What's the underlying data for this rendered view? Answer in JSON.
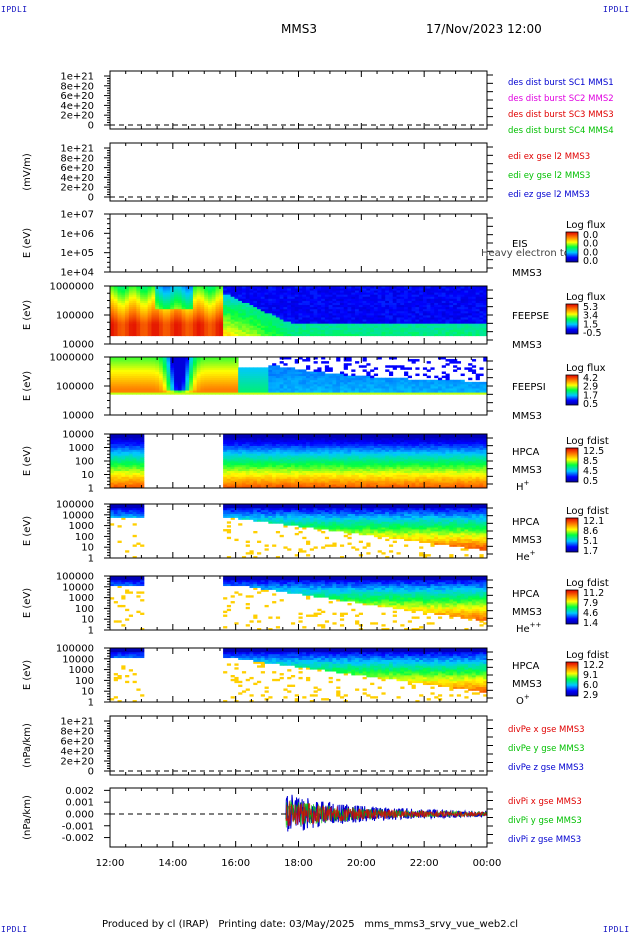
{
  "header": {
    "title": "MMS3",
    "date": "17/Nov/2023 12:00",
    "corner_label": "IPDLI"
  },
  "footer": {
    "producer": "Produced by cl (IRAP)",
    "printing_date": "Printing date: 03/May/2025",
    "source": "mms_mms3_srvy_vue_web2.cl"
  },
  "colors": {
    "red": "#e00000",
    "green": "#00c000",
    "blue": "#0000d0",
    "magenta": "#e000e0",
    "frame": "#000000"
  },
  "chart_data": {
    "type": "multi-panel",
    "x_ticks": [
      "12:00",
      "14:00",
      "16:00",
      "18:00",
      "20:00",
      "22:00",
      "00:00"
    ],
    "x_range": [
      12,
      24
    ],
    "gaps": [
      [
        13.05,
        15.65
      ]
    ],
    "panels": [
      {
        "id": "dist",
        "kind": "line",
        "ylabel": "",
        "yticks": [
          "1e+21",
          "8e+20",
          "6e+20",
          "4e+20",
          "2e+20",
          "0"
        ],
        "ylim": [
          0,
          1.1e+21
        ],
        "zero_line": true,
        "legend": [
          {
            "text": "des dist burst SC1 MMS1",
            "color": "#0000d0"
          },
          {
            "text": "des dist burst SC2 MMS2",
            "color": "#e000e0"
          },
          {
            "text": "des dist burst SC3 MMS3",
            "color": "#e00000"
          },
          {
            "text": "des dist burst SC4 MMS4",
            "color": "#00c000"
          }
        ]
      },
      {
        "id": "edi",
        "kind": "line",
        "ylabel": "(mV/m)",
        "yticks": [
          "1e+21",
          "8e+20",
          "6e+20",
          "4e+20",
          "2e+20",
          "0"
        ],
        "ylim": [
          0,
          1.1e+21
        ],
        "zero_line": true,
        "legend": [
          {
            "text": "edi ex gse l2 MMS3",
            "color": "#e00000"
          },
          {
            "text": "edi ey gse l2 MMS3",
            "color": "#00c000"
          },
          {
            "text": "edi ez gse l2 MMS3",
            "color": "#0000d0"
          }
        ]
      },
      {
        "id": "eis",
        "kind": "spectrogram-empty",
        "ylabel": "E (eV)",
        "yticks": [
          "1e+07",
          "1e+06",
          "1e+05",
          "1e+04"
        ],
        "right_labels": [
          "EIS",
          "MMS3"
        ],
        "overlay_text": "Heavy electron to",
        "colorbar": {
          "title": "Log flux",
          "ticks": [
            "0.0",
            "0.0",
            "0.0",
            "0.0"
          ]
        }
      },
      {
        "id": "feepse",
        "kind": "spectrogram",
        "profile": "feeps_e",
        "ylabel": "E (eV)",
        "yticks": [
          "1000000",
          "100000",
          "10000"
        ],
        "right_labels": [
          "FEEPSE",
          "MMS3"
        ],
        "colorbar": {
          "title": "Log flux",
          "ticks": [
            "5.3",
            "3.4",
            "1.5",
            "-0.5"
          ]
        }
      },
      {
        "id": "feepsi",
        "kind": "spectrogram",
        "profile": "feeps_i",
        "ylabel": "E (eV)",
        "yticks": [
          "1000000",
          "100000",
          "10000"
        ],
        "right_labels": [
          "FEEPSI",
          "MMS3"
        ],
        "colorbar": {
          "title": "Log flux",
          "ticks": [
            "4.2",
            "2.9",
            "1.7",
            "0.5"
          ]
        }
      },
      {
        "id": "hpca_h",
        "kind": "spectrogram",
        "profile": "hpca_h",
        "ylabel": "E (eV)",
        "yticks": [
          "10000",
          "1000",
          "100",
          "10",
          "1"
        ],
        "right_labels": [
          "HPCA",
          "MMS3"
        ],
        "species": "H",
        "species_sup": "+",
        "colorbar": {
          "title": "Log fdist",
          "ticks": [
            "12.5",
            "8.5",
            "4.5",
            "0.5"
          ]
        }
      },
      {
        "id": "hpca_he",
        "kind": "spectrogram",
        "profile": "hpca_he",
        "ylabel": "E (eV)",
        "yticks": [
          "100000",
          "10000",
          "1000",
          "100",
          "10",
          "1"
        ],
        "right_labels": [
          "HPCA",
          "MMS3"
        ],
        "species": "He",
        "species_sup": "+",
        "colorbar": {
          "title": "Log fdist",
          "ticks": [
            "12.1",
            "8.6",
            "5.1",
            "1.7"
          ]
        }
      },
      {
        "id": "hpca_he2",
        "kind": "spectrogram",
        "profile": "hpca_he2",
        "ylabel": "E (eV)",
        "yticks": [
          "100000",
          "10000",
          "1000",
          "100",
          "10",
          "1"
        ],
        "right_labels": [
          "HPCA",
          "MMS3"
        ],
        "species": "He",
        "species_sup": "++",
        "colorbar": {
          "title": "Log fdist",
          "ticks": [
            "11.2",
            "7.9",
            "4.6",
            "1.4"
          ]
        }
      },
      {
        "id": "hpca_o",
        "kind": "spectrogram",
        "profile": "hpca_o",
        "ylabel": "E (eV)",
        "yticks": [
          "100000",
          "10000",
          "1000",
          "100",
          "10",
          "1"
        ],
        "right_labels": [
          "HPCA",
          "MMS3"
        ],
        "species": "O",
        "species_sup": "+",
        "colorbar": {
          "title": "Log fdist",
          "ticks": [
            "12.2",
            "9.1",
            "6.0",
            "2.9"
          ]
        }
      },
      {
        "id": "divpe",
        "kind": "line",
        "ylabel": "(nPa/km)",
        "yticks": [
          "1e+21",
          "8e+20",
          "6e+20",
          "4e+20",
          "2e+20",
          "0"
        ],
        "ylim": [
          0,
          1.1e+21
        ],
        "zero_line": true,
        "legend": [
          {
            "text": "divPe x gse MMS3",
            "color": "#e00000"
          },
          {
            "text": "divPe y gse MMS3",
            "color": "#00c000"
          },
          {
            "text": "divPe z gse MMS3",
            "color": "#0000d0"
          }
        ]
      },
      {
        "id": "divpi",
        "kind": "line-noise",
        "ylabel": "(nPa/km)",
        "yticks": [
          "0.002",
          "0.001",
          "0.000",
          "-0.001",
          "-0.002"
        ],
        "ylim": [
          -0.0028,
          0.0022
        ],
        "zero_line": true,
        "data_start": 17.6,
        "legend": [
          {
            "text": "divPi x gse MMS3",
            "color": "#e00000"
          },
          {
            "text": "divPi y gse MMS3",
            "color": "#00c000"
          },
          {
            "text": "divPi z gse MMS3",
            "color": "#0000d0"
          }
        ]
      }
    ]
  }
}
